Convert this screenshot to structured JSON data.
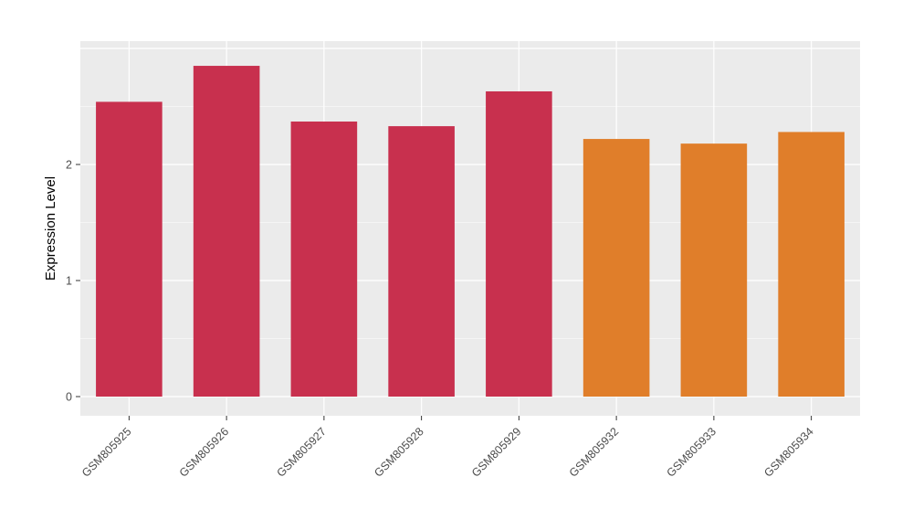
{
  "chart_data": {
    "type": "bar",
    "title": "",
    "xlabel": "",
    "ylabel": "Expression Level",
    "categories": [
      "GSM805925",
      "GSM805926",
      "GSM805927",
      "GSM805928",
      "GSM805929",
      "GSM805932",
      "GSM805933",
      "GSM805934"
    ],
    "values": [
      2.54,
      2.85,
      2.37,
      2.33,
      2.63,
      2.22,
      2.18,
      2.28
    ],
    "bar_colors": [
      "#c8304e",
      "#c8304e",
      "#c8304e",
      "#c8304e",
      "#c8304e",
      "#e07e2a",
      "#e07e2a",
      "#e07e2a"
    ],
    "group_colors": {
      "group1": "#c8304e",
      "group2": "#e07e2a"
    },
    "ylim": [
      0,
      3.05
    ],
    "yticks": [
      0,
      1,
      2
    ],
    "yticks_minor": [
      0.5,
      1.5,
      2.5
    ],
    "grid": "on",
    "legend_position": "none",
    "panel_background": "#ebebeb",
    "grid_color": "#ffffff"
  }
}
